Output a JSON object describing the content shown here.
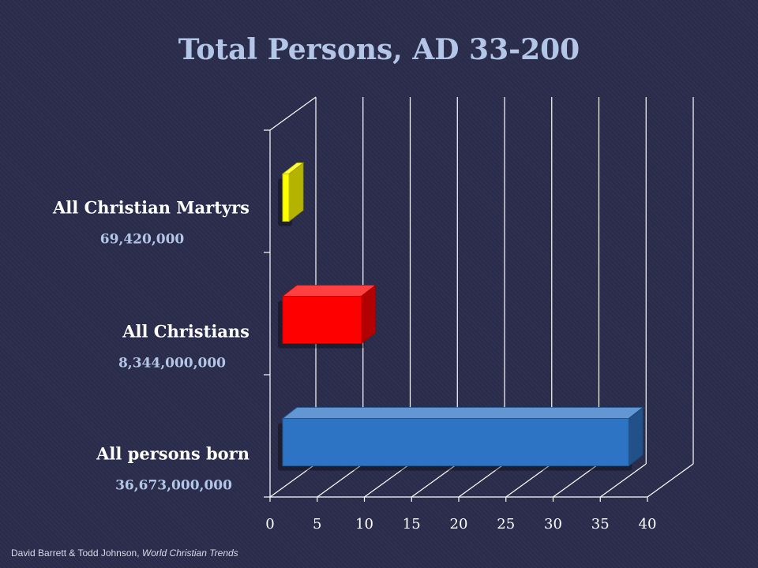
{
  "slide": {
    "title": "Total Persons, AD 33-200",
    "footer_authors": "David Barrett & Todd Johnson, ",
    "footer_work": "World Christian Trends"
  },
  "chart_data": {
    "type": "bar",
    "orientation": "horizontal",
    "style": "3d",
    "categories": [
      "All Christian Martyrs",
      "All Christians",
      "All persons born"
    ],
    "values": [
      0.07,
      8.344,
      36.673
    ],
    "value_labels": [
      "69,420,000",
      "8,344,000,000",
      "36,673,000,000"
    ],
    "colors": [
      "#ffff00",
      "#ff0000",
      "#2e74c4"
    ],
    "xticks": [
      0,
      5,
      10,
      15,
      20,
      25,
      30,
      35,
      40
    ],
    "xlim": [
      0,
      40
    ],
    "grid": true,
    "title": "Total Persons, AD 33-200",
    "xlabel": "",
    "ylabel": ""
  }
}
